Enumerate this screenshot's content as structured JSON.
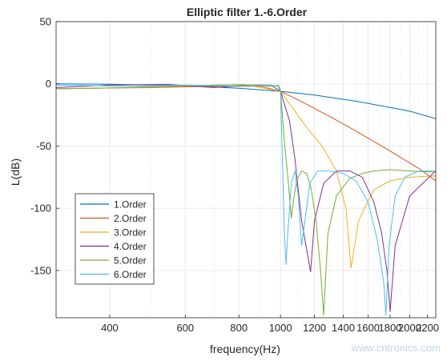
{
  "chart_data": {
    "type": "line",
    "title": "Elliptic filter 1.-6.Order",
    "xlabel": "frequency(Hz)",
    "ylabel": "L(dB)",
    "x_scale": "log",
    "xlim": [
      300,
      2300
    ],
    "ylim": [
      -188,
      50
    ],
    "grid": true,
    "legend_position": "bottom-left",
    "x_ticks": [
      {
        "value": 400,
        "label": "400"
      },
      {
        "value": 600,
        "label": "600"
      },
      {
        "value": 800,
        "label": "800"
      },
      {
        "value": 1000,
        "label": "1000"
      },
      {
        "value": 1200,
        "label": "1200"
      },
      {
        "value": 1400,
        "label": "1400"
      },
      {
        "value": 1600,
        "label": "1600"
      },
      {
        "value": 1800,
        "label": "1800"
      },
      {
        "value": 2000,
        "label": "2000"
      },
      {
        "value": 2200,
        "label": "2200"
      }
    ],
    "y_ticks": [
      {
        "value": 50,
        "label": "50"
      },
      {
        "value": 0,
        "label": "0"
      },
      {
        "value": -50,
        "label": "-50"
      },
      {
        "value": -100,
        "label": "-100"
      },
      {
        "value": -150,
        "label": "-150"
      }
    ],
    "series": [
      {
        "name": "1.Order",
        "color": "#0072BD",
        "x": [
          300,
          400,
          600,
          800,
          1000,
          1200,
          1500,
          1800,
          2000,
          2300
        ],
        "y": [
          0,
          -0.3,
          -1.5,
          -3.5,
          -6,
          -9,
          -14,
          -19,
          -22,
          -28
        ]
      },
      {
        "name": "2.Order",
        "color": "#D95319",
        "x": [
          300,
          500,
          700,
          900,
          1000,
          1100,
          1300,
          1500,
          1800,
          2100,
          2300
        ],
        "y": [
          -4,
          -3,
          -2,
          -2,
          -6,
          -13,
          -26,
          -38,
          -54,
          -68,
          -78
        ]
      },
      {
        "name": "3.Order",
        "color": "#EDB120",
        "x": [
          300,
          450,
          650,
          820,
          1000,
          1060,
          1150,
          1250,
          1350,
          1420,
          1460,
          1520,
          1650,
          1800,
          2000,
          2300
        ],
        "y": [
          -4,
          -3,
          -1.5,
          -0.5,
          -6,
          -18,
          -35,
          -50,
          -70,
          -100,
          -148,
          -110,
          -85,
          -78,
          -75,
          -74
        ]
      },
      {
        "name": "4.Order",
        "color": "#7E2F8E",
        "x": [
          300,
          400,
          550,
          700,
          860,
          950,
          1000,
          1050,
          1080,
          1120,
          1160,
          1175,
          1200,
          1260,
          1350,
          1450,
          1550,
          1650,
          1720,
          1770,
          1800,
          1850,
          2000,
          2300
        ],
        "y": [
          -3,
          -1,
          -0.5,
          -3,
          -1,
          -1,
          -6,
          -30,
          -60,
          -110,
          -140,
          -151,
          -110,
          -80,
          -70,
          -70,
          -75,
          -95,
          -120,
          -150,
          -183,
          -130,
          -90,
          -70
        ]
      },
      {
        "name": "5.Order",
        "color": "#77AC30",
        "x": [
          300,
          450,
          700,
          850,
          950,
          990,
          1000,
          1020,
          1040,
          1060,
          1070,
          1090,
          1120,
          1150,
          1180,
          1210,
          1240,
          1260,
          1290,
          1350,
          1450,
          1550,
          1650,
          1800,
          2000,
          2300
        ],
        "y": [
          -4,
          -3,
          -1,
          -1,
          -2,
          -1,
          -6,
          -45,
          -75,
          -108,
          -96,
          -78,
          -70,
          -72,
          -85,
          -110,
          -150,
          -186,
          -120,
          -90,
          -76,
          -72,
          -70,
          -69,
          -70,
          -71
        ]
      },
      {
        "name": "6.Order",
        "color": "#4DBEEE",
        "x": [
          300,
          450,
          600,
          800,
          950,
          985,
          1000,
          1010,
          1020,
          1030,
          1040,
          1060,
          1080,
          1100,
          1120,
          1140,
          1170,
          1220,
          1300,
          1400,
          1500,
          1600,
          1680,
          1740,
          1760,
          1790,
          1850,
          1950,
          2100,
          2300
        ],
        "y": [
          -1,
          -2,
          -1,
          -2,
          -1,
          -2,
          -6,
          -60,
          -118,
          -145,
          -120,
          -80,
          -70,
          -90,
          -130,
          -110,
          -80,
          -70,
          -70,
          -72,
          -78,
          -95,
          -125,
          -160,
          -186,
          -130,
          -90,
          -75,
          -70,
          -70
        ]
      }
    ]
  },
  "watermark": "www.cntronics.com"
}
